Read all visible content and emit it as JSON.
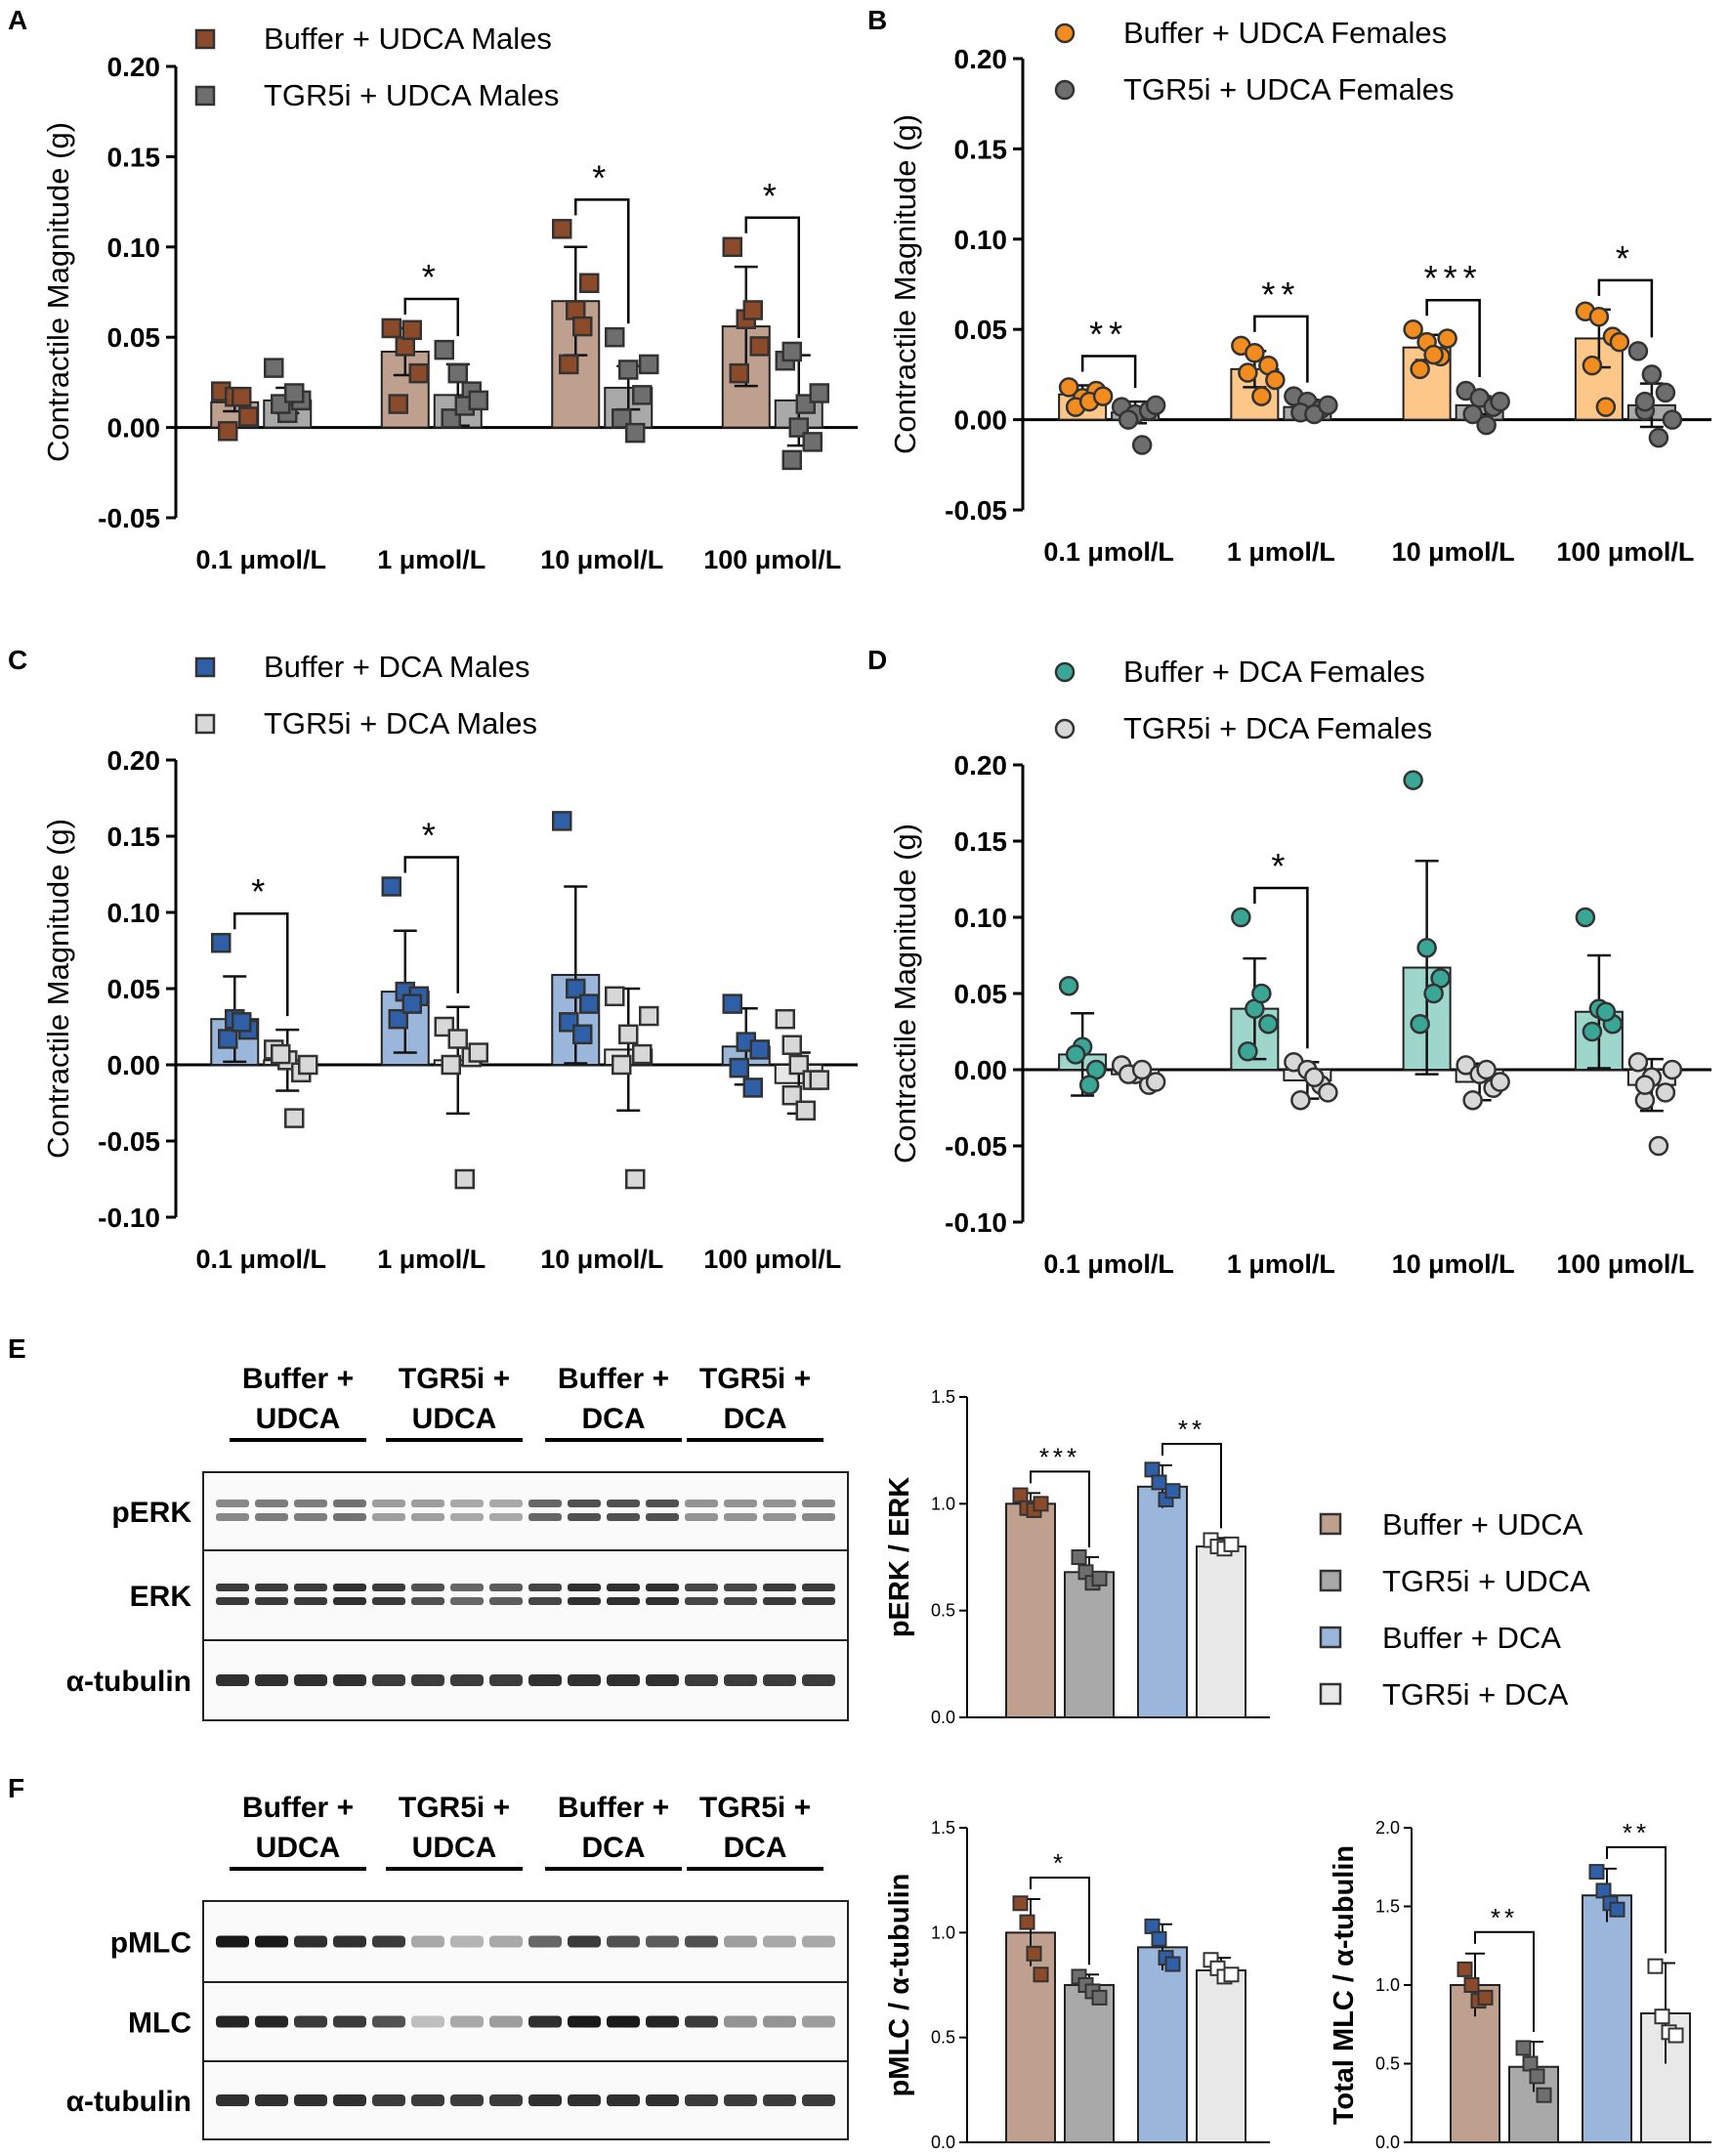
{
  "figure": {
    "panel_labels": [
      "A",
      "B",
      "C",
      "D",
      "E",
      "F"
    ]
  },
  "colors": {
    "brown": "#bf9f8d",
    "brown_mark": "#8b4a2a",
    "grey": "#a9a9a9",
    "grey_mark": "#6e6e6e",
    "orange": "#fdc78a",
    "orange_mark": "#f28c1e",
    "teal": "#9fd6cc",
    "teal_mark": "#3aa696",
    "blue": "#9bb6db",
    "blue_mark": "#2f5fa6",
    "light": "#e8e8e8",
    "light_mark": "#d8d8d8"
  },
  "chart_data": [
    {
      "panel": "A",
      "type": "bar",
      "ylabel": "Contractile Magnitude (g)",
      "ylim": [
        -0.05,
        0.2
      ],
      "yticks": [
        "0.20",
        "0.15",
        "0.10",
        "0.05",
        "0.00",
        "-0.05"
      ],
      "categories": [
        "0.1 μmol/L",
        "1 μmol/L",
        "10 μmol/L",
        "100 μmol/L"
      ],
      "series": [
        {
          "name": "Buffer + UDCA Males",
          "marker": "square",
          "color": "brown",
          "values": [
            0.014,
            0.042,
            0.07,
            0.056
          ],
          "error": [
            0.005,
            0.013,
            0.03,
            0.033
          ],
          "points": [
            [
              0.02,
              0.017,
              0.006,
              -0.002,
              0.017
            ],
            [
              0.055,
              0.045,
              0.03,
              0.013,
              0.054
            ],
            [
              0.11,
              0.065,
              0.08,
              0.035,
              0.056
            ],
            [
              0.1,
              0.06,
              0.045,
              0.03,
              0.065
            ]
          ]
        },
        {
          "name": "TGR5i + UDCA Males",
          "marker": "square",
          "color": "grey",
          "values": [
            0.015,
            0.018,
            0.022,
            0.015
          ],
          "error": [
            0.007,
            0.017,
            0.012,
            0.025
          ],
          "points": [
            [
              0.033,
              0.008,
              0.015,
              0.013,
              0.019
            ],
            [
              0.043,
              0.03,
              0.02,
              0.005,
              0.012,
              0.015
            ],
            [
              0.05,
              0.032,
              0.018,
              0.005,
              -0.003,
              0.035
            ],
            [
              0.037,
              0.0,
              -0.008,
              -0.018,
              0.013,
              0.019,
              0.042
            ]
          ]
        }
      ],
      "significance": [
        "*",
        "*",
        "*"
      ]
    },
    {
      "panel": "B",
      "type": "bar",
      "ylabel": "Contractile Magnitude (g)",
      "ylim": [
        -0.05,
        0.2
      ],
      "yticks": [
        "0.20",
        "0.15",
        "0.10",
        "0.05",
        "0.00",
        "-0.05"
      ],
      "categories": [
        "0.1 μmol/L",
        "1 μmol/L",
        "10 μmol/L",
        "100 μmol/L"
      ],
      "series": [
        {
          "name": "Buffer + UDCA Females",
          "marker": "circle",
          "color": "orange",
          "values": [
            0.014,
            0.028,
            0.04,
            0.045
          ],
          "error": [
            0.005,
            0.01,
            0.007,
            0.016
          ],
          "points": [
            [
              0.018,
              0.012,
              0.016,
              0.007,
              0.01,
              0.013
            ],
            [
              0.041,
              0.037,
              0.03,
              0.026,
              0.013,
              0.022
            ],
            [
              0.05,
              0.043,
              0.035,
              0.028,
              0.036,
              0.045
            ],
            [
              0.06,
              0.057,
              0.046,
              0.03,
              0.007,
              0.043
            ]
          ]
        },
        {
          "name": "TGR5i + UDCA Females",
          "marker": "circle",
          "color": "grey",
          "values": [
            0.004,
            0.007,
            0.008,
            0.008
          ],
          "error": [
            0.006,
            0.004,
            0.005,
            0.012
          ],
          "points": [
            [
              0.007,
              0.003,
              0.005,
              0.0,
              -0.014,
              0.008
            ],
            [
              0.013,
              0.01,
              0.006,
              0.004,
              0.003,
              0.008
            ],
            [
              0.016,
              0.012,
              0.007,
              0.003,
              -0.003,
              0.01
            ],
            [
              0.038,
              0.025,
              0.015,
              0.005,
              -0.01,
              0.0,
              0.01
            ]
          ]
        }
      ],
      "significance": [
        "**",
        "**",
        "***",
        "*"
      ]
    },
    {
      "panel": "C",
      "type": "bar",
      "ylabel": "Contractile Magnitude (g)",
      "ylim": [
        -0.1,
        0.2
      ],
      "yticks": [
        "0.20",
        "0.15",
        "0.10",
        "0.05",
        "0.00",
        "-0.05",
        "-0.10"
      ],
      "categories": [
        "0.1 μmol/L",
        "1 μmol/L",
        "10 μmol/L",
        "100 μmol/L"
      ],
      "series": [
        {
          "name": "Buffer + DCA Males",
          "marker": "square",
          "color": "blue",
          "values": [
            0.03,
            0.048,
            0.059,
            0.012
          ],
          "error": [
            0.028,
            0.04,
            0.058,
            0.025
          ],
          "points": [
            [
              0.08,
              0.03,
              0.023,
              0.017,
              0.028
            ],
            [
              0.117,
              0.048,
              0.045,
              0.03,
              0.04
            ],
            [
              0.16,
              0.05,
              0.04,
              0.028,
              0.02
            ],
            [
              0.04,
              0.015,
              0.01,
              -0.002,
              -0.015
            ]
          ]
        },
        {
          "name": "TGR5i + DCA Males",
          "marker": "square",
          "color": "light",
          "values": [
            0.003,
            0.003,
            0.01,
            -0.012
          ],
          "error": [
            0.02,
            0.035,
            0.04,
            0.02
          ],
          "points": [
            [
              0.01,
              0.003,
              -0.005,
              0.007,
              -0.035,
              0.0
            ],
            [
              0.025,
              0.017,
              0.005,
              0.0,
              -0.075,
              0.008
            ],
            [
              0.045,
              0.02,
              0.007,
              0.0,
              -0.075,
              0.032
            ],
            [
              0.03,
              0.0,
              -0.01,
              -0.02,
              -0.03,
              -0.01,
              0.013
            ]
          ]
        }
      ],
      "significance": [
        "*",
        "*"
      ]
    },
    {
      "panel": "D",
      "type": "bar",
      "ylabel": "Contractile Magnitude (g)",
      "ylim": [
        -0.1,
        0.2
      ],
      "yticks": [
        "0.20",
        "0.15",
        "0.10",
        "0.05",
        "0.00",
        "-0.05",
        "-0.10"
      ],
      "categories": [
        "0.1 μmol/L",
        "1 μmol/L",
        "10 μmol/L",
        "100 μmol/L"
      ],
      "series": [
        {
          "name": "Buffer + DCA Females",
          "marker": "circle",
          "color": "teal",
          "values": [
            0.01,
            0.04,
            0.067,
            0.038
          ],
          "error": [
            0.027,
            0.033,
            0.07,
            0.037
          ],
          "points": [
            [
              0.055,
              0.015,
              0.0,
              0.01,
              -0.01
            ],
            [
              0.1,
              0.04,
              0.03,
              0.012,
              0.05
            ],
            [
              0.19,
              0.08,
              0.06,
              0.03,
              0.05
            ],
            [
              0.1,
              0.04,
              0.03,
              0.025,
              0.038
            ]
          ]
        },
        {
          "name": "TGR5i + DCA Females",
          "marker": "circle",
          "color": "light",
          "values": [
            -0.003,
            -0.007,
            -0.008,
            -0.01
          ],
          "error": [
            0.005,
            0.012,
            0.012,
            0.017
          ],
          "points": [
            [
              0.003,
              -0.003,
              -0.01,
              -0.003,
              0.0,
              -0.008
            ],
            [
              0.005,
              0.0,
              -0.01,
              -0.02,
              -0.005,
              -0.015
            ],
            [
              0.003,
              -0.003,
              -0.012,
              -0.02,
              0.0,
              -0.008
            ],
            [
              0.005,
              -0.005,
              -0.015,
              -0.02,
              -0.05,
              0.0,
              -0.01
            ]
          ]
        }
      ],
      "significance": [
        "*"
      ]
    },
    {
      "panel": "E",
      "type": "bar",
      "ylabel": "pERK / ERK",
      "ylim": [
        0,
        1.5
      ],
      "yticks": [
        "1.5",
        "1.0",
        "0.5",
        "0.0"
      ],
      "groups": [
        "Buffer + UDCA",
        "TGR5i + UDCA",
        "Buffer + DCA",
        "TGR5i + DCA"
      ],
      "values": [
        1.0,
        0.68,
        1.08,
        0.8
      ],
      "error": [
        0.05,
        0.07,
        0.1,
        0.04
      ],
      "points": [
        [
          1.04,
          0.98,
          0.97,
          1.0
        ],
        [
          0.75,
          0.68,
          0.63,
          0.65
        ],
        [
          1.16,
          1.1,
          1.02,
          1.06
        ],
        [
          0.83,
          0.8,
          0.79,
          0.81
        ]
      ],
      "significance": [
        "***",
        "**"
      ]
    },
    {
      "panel": "F1",
      "type": "bar",
      "ylabel": "pMLC / α-tubulin",
      "ylim": [
        0,
        1.5
      ],
      "yticks": [
        "1.5",
        "1.0",
        "0.5",
        "0.0"
      ],
      "groups": [
        "Buffer + UDCA",
        "TGR5i + UDCA",
        "Buffer + DCA",
        "TGR5i + DCA"
      ],
      "values": [
        1.0,
        0.75,
        0.93,
        0.82
      ],
      "error": [
        0.16,
        0.05,
        0.11,
        0.06
      ],
      "points": [
        [
          1.14,
          1.05,
          0.9,
          0.8
        ],
        [
          0.79,
          0.75,
          0.72,
          0.69
        ],
        [
          1.03,
          0.97,
          0.88,
          0.85
        ],
        [
          0.87,
          0.83,
          0.79,
          0.8
        ]
      ],
      "significance": [
        "*"
      ]
    },
    {
      "panel": "F2",
      "type": "bar",
      "ylabel": "Total MLC / α-tubulin",
      "ylim": [
        0,
        2.0
      ],
      "yticks": [
        "2.0",
        "1.5",
        "1.0",
        "0.5",
        "0.0"
      ],
      "groups": [
        "Buffer + UDCA",
        "TGR5i + UDCA",
        "Buffer + DCA",
        "TGR5i + DCA"
      ],
      "values": [
        1.0,
        0.48,
        1.57,
        0.82
      ],
      "error": [
        0.2,
        0.16,
        0.17,
        0.32
      ],
      "points": [
        [
          1.1,
          1.0,
          0.9,
          0.92
        ],
        [
          0.6,
          0.5,
          0.42,
          0.3
        ],
        [
          1.72,
          1.6,
          1.52,
          1.48
        ],
        [
          1.12,
          0.8,
          0.7,
          0.68
        ]
      ],
      "significance": [
        "**",
        "**"
      ]
    }
  ],
  "legend_E": [
    {
      "label": "Buffer + UDCA",
      "color": "brown"
    },
    {
      "label": "TGR5i + UDCA",
      "color": "grey"
    },
    {
      "label": "Buffer + DCA",
      "color": "blue"
    },
    {
      "label": "TGR5i + DCA",
      "color": "light"
    }
  ],
  "blots": {
    "header_lines": [
      [
        "Buffer +",
        "UDCA"
      ],
      [
        "TGR5i +",
        "UDCA"
      ],
      [
        "Buffer +",
        "DCA"
      ],
      [
        "TGR5i +",
        "DCA"
      ]
    ],
    "E": [
      "pERK",
      "ERK",
      "α-tubulin"
    ],
    "F": [
      "pMLC",
      "MLC",
      "α-tubulin"
    ],
    "intensity": {
      "pERK": [
        0.45,
        0.5,
        0.5,
        0.55,
        0.35,
        0.35,
        0.3,
        0.3,
        0.6,
        0.7,
        0.7,
        0.7,
        0.4,
        0.4,
        0.4,
        0.45
      ],
      "ERK": [
        0.8,
        0.8,
        0.8,
        0.85,
        0.8,
        0.7,
        0.6,
        0.65,
        0.75,
        0.85,
        0.85,
        0.85,
        0.75,
        0.75,
        0.8,
        0.8
      ],
      "α-tubulin": [
        0.85,
        0.85,
        0.85,
        0.85,
        0.8,
        0.8,
        0.8,
        0.8,
        0.85,
        0.85,
        0.85,
        0.85,
        0.8,
        0.8,
        0.8,
        0.8
      ],
      "pMLC": [
        0.95,
        0.95,
        0.85,
        0.85,
        0.8,
        0.3,
        0.25,
        0.3,
        0.6,
        0.8,
        0.7,
        0.65,
        0.7,
        0.35,
        0.3,
        0.3
      ],
      "MLC": [
        0.9,
        0.9,
        0.8,
        0.8,
        0.7,
        0.2,
        0.3,
        0.35,
        0.85,
        0.95,
        0.95,
        0.9,
        0.8,
        0.4,
        0.4,
        0.35
      ]
    }
  }
}
